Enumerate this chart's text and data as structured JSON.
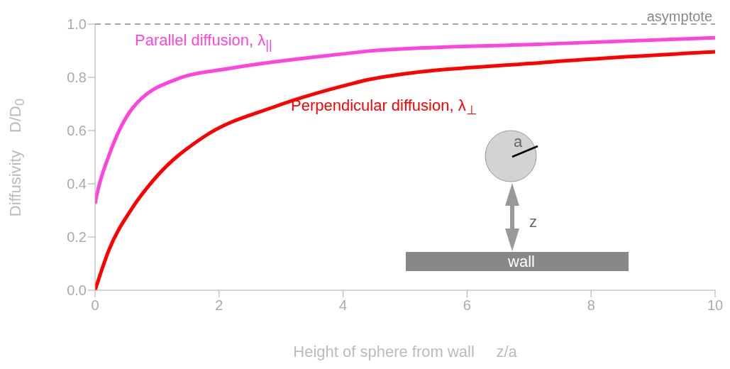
{
  "chart_data": {
    "type": "line",
    "xlabel": "Height of sphere from wall     z/a",
    "ylabel": "Diffusivity    D/D$_{0}$",
    "xlim": [
      0,
      10
    ],
    "xticks": [
      0,
      2,
      4,
      6,
      8,
      10
    ],
    "ylim": [
      0,
      1
    ],
    "yticks": [
      {
        "value": 0,
        "label": "0.0"
      },
      0.2,
      0.4,
      0.6,
      0.8,
      {
        "value": 1,
        "label": "1.0"
      }
    ],
    "marker": "none",
    "line_style": "solid",
    "ref_lines": [
      {
        "axis": "y",
        "value": 1,
        "label": "asymptote",
        "color": "#888888",
        "line_style": "dashed"
      }
    ],
    "annotations": [
      "a",
      "z",
      "wall"
    ],
    "series": [
      {
        "name": "Parallel diffusion,  λ$_{||}$",
        "color": "#ff44dd",
        "x": [
          0,
          0.05,
          0.22,
          0.6,
          1.36,
          2.13,
          4.19,
          4.42,
          7.24,
          10
        ],
        "values": [
          0.325,
          0.38,
          0.504,
          0.683,
          0.797,
          0.832,
          0.893,
          0.899,
          0.925,
          0.949
        ]
      },
      {
        "name": "Perpendicular diffusion,  λ$_{⊥}$",
        "color": "#ff0000",
        "x": [
          0,
          0.22,
          0.6,
          0.98,
          1.75,
          2.9,
          4.19,
          4.42,
          7.24,
          10
        ],
        "values": [
          0,
          0.149,
          0.309,
          0.424,
          0.576,
          0.69,
          0.779,
          0.792,
          0.856,
          0.896
        ]
      }
    ]
  }
}
